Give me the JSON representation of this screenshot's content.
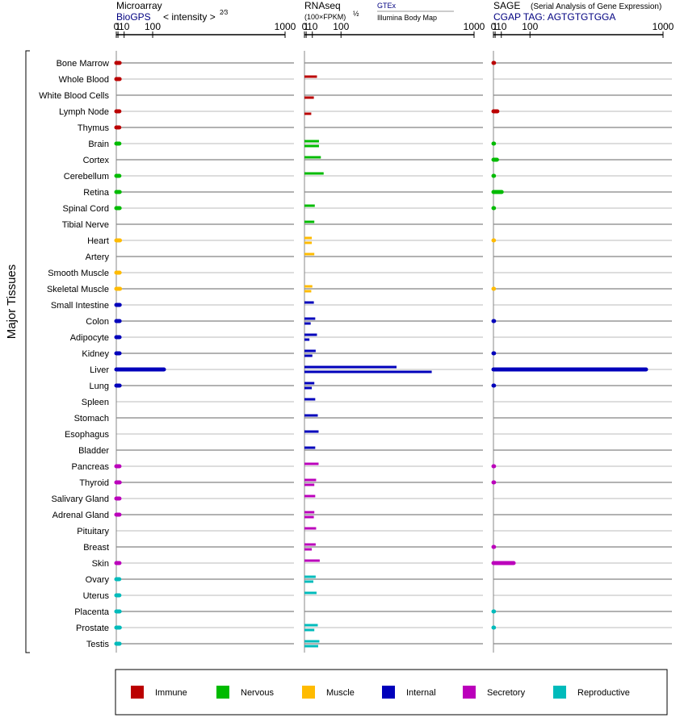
{
  "panels": {
    "microarray": {
      "title": "Microarray",
      "source": "BioGPS",
      "subtitle": "< intensity >",
      "exponent": "2⁄3",
      "ticks": [
        "0",
        "1",
        "10",
        "100",
        "1000"
      ]
    },
    "rnaseq": {
      "title": "RNAseq",
      "unit": "(100×FPKM)",
      "exponent": "½",
      "source1": "GTEx",
      "source2": "Illumina Body Map",
      "ticks": [
        "0",
        "1",
        "10",
        "100",
        "1000"
      ]
    },
    "sage": {
      "title": "SAGE",
      "title_note": "(Serial Analysis of Gene Expression)",
      "source": "CGAP  TAG: AGTGTGTGGA",
      "ticks": [
        "0",
        "1",
        "10",
        "100",
        "1000"
      ]
    }
  },
  "y_axis_label": "Major Tissues",
  "legend": {
    "immune": "Immune",
    "nervous": "Nervous",
    "muscle": "Muscle",
    "internal": "Internal",
    "secretory": "Secretory",
    "reproductive": "Reproductive"
  },
  "colors": {
    "immune": "#bb0000",
    "nervous": "#00bb00",
    "muscle": "#ffbb00",
    "internal": "#0000bb",
    "secretory": "#bb00bb",
    "reproductive": "#00bbbb",
    "grid": "#999999",
    "axis": "#000000",
    "source_link": "#000080"
  },
  "chart_data": {
    "type": "bar",
    "scale": "power 2/3 (0, 1, 10, 100, 1000 ticks)",
    "xlim": [
      0,
      1000
    ],
    "tissues": [
      {
        "name": "Bone Marrow",
        "group": "immune",
        "microarray": 2.8,
        "gtex": null,
        "ibm": null,
        "sage": 0.05
      },
      {
        "name": "Whole Blood",
        "group": "immune",
        "microarray": 2.8,
        "gtex": 20,
        "ibm": null,
        "sage": null
      },
      {
        "name": "White Blood Cells",
        "group": "immune",
        "microarray": null,
        "gtex": null,
        "ibm": 13,
        "sage": null
      },
      {
        "name": "Lymph Node",
        "group": "immune",
        "microarray": 2.5,
        "gtex": null,
        "ibm": 8,
        "sage": 3.0
      },
      {
        "name": "Thymus",
        "group": "immune",
        "microarray": 2.4,
        "gtex": null,
        "ibm": null,
        "sage": null
      },
      {
        "name": "Brain",
        "group": "nervous",
        "microarray": 2.5,
        "gtex": 25,
        "ibm": 25,
        "sage": 0.03
      },
      {
        "name": "Cortex",
        "group": "nervous",
        "microarray": null,
        "gtex": 30,
        "ibm": null,
        "sage": 2.5
      },
      {
        "name": "Cerebellum",
        "group": "nervous",
        "microarray": 2.5,
        "gtex": 38,
        "ibm": null,
        "sage": 0.03
      },
      {
        "name": "Retina",
        "group": "nervous",
        "microarray": 2.9,
        "gtex": null,
        "ibm": null,
        "sage": 10
      },
      {
        "name": "Spinal Cord",
        "group": "nervous",
        "microarray": 2.8,
        "gtex": 15,
        "ibm": null,
        "sage": 0.03
      },
      {
        "name": "Tibial Nerve",
        "group": "nervous",
        "microarray": null,
        "gtex": 14,
        "ibm": null,
        "sage": null
      },
      {
        "name": "Heart",
        "group": "muscle",
        "microarray": 3.2,
        "gtex": 9,
        "ibm": 9,
        "sage": 0.02
      },
      {
        "name": "Artery",
        "group": "muscle",
        "microarray": null,
        "gtex": 14,
        "ibm": null,
        "sage": null
      },
      {
        "name": "Smooth Muscle",
        "group": "muscle",
        "microarray": 2.8,
        "gtex": null,
        "ibm": null,
        "sage": null
      },
      {
        "name": "Skeletal Muscle",
        "group": "muscle",
        "microarray": 3.3,
        "gtex": 10,
        "ibm": 8,
        "sage": 0.02
      },
      {
        "name": "Small Intestine",
        "group": "internal",
        "microarray": 2.9,
        "gtex": 13,
        "ibm": null,
        "sage": null
      },
      {
        "name": "Colon",
        "group": "internal",
        "microarray": 2.8,
        "gtex": 16,
        "ibm": 7,
        "sage": 0.05
      },
      {
        "name": "Adipocyte",
        "group": "internal",
        "microarray": 2.7,
        "gtex": 20,
        "ibm": 5,
        "sage": null
      },
      {
        "name": "Kidney",
        "group": "internal",
        "microarray": 2.7,
        "gtex": 17,
        "ibm": 10,
        "sage": 0.05
      },
      {
        "name": "Liver",
        "group": "internal",
        "microarray": 150,
        "gtex": 400,
        "ibm": 650,
        "sage": 850
      },
      {
        "name": "Lung",
        "group": "internal",
        "microarray": 2.8,
        "gtex": 14,
        "ibm": 9,
        "sage": 0.05
      },
      {
        "name": "Spleen",
        "group": "internal",
        "microarray": null,
        "gtex": 16,
        "ibm": null,
        "sage": null
      },
      {
        "name": "Stomach",
        "group": "internal",
        "microarray": null,
        "gtex": 22,
        "ibm": null,
        "sage": null
      },
      {
        "name": "Esophagus",
        "group": "internal",
        "microarray": null,
        "gtex": 24,
        "ibm": null,
        "sage": null
      },
      {
        "name": "Bladder",
        "group": "internal",
        "microarray": null,
        "gtex": 16,
        "ibm": null,
        "sage": null
      },
      {
        "name": "Pancreas",
        "group": "secretory",
        "microarray": 2.6,
        "gtex": 24,
        "ibm": null,
        "sage": 0.05
      },
      {
        "name": "Thyroid",
        "group": "secretory",
        "microarray": 2.9,
        "gtex": 18,
        "ibm": 14,
        "sage": 0.05
      },
      {
        "name": "Salivary Gland",
        "group": "secretory",
        "microarray": 2.6,
        "gtex": 16,
        "ibm": null,
        "sage": null
      },
      {
        "name": "Adrenal Gland",
        "group": "secretory",
        "microarray": 2.6,
        "gtex": 14,
        "ibm": 13,
        "sage": null
      },
      {
        "name": "Pituitary",
        "group": "secretory",
        "microarray": null,
        "gtex": 18,
        "ibm": null,
        "sage": null
      },
      {
        "name": "Breast",
        "group": "secretory",
        "microarray": null,
        "gtex": 17,
        "ibm": 9,
        "sage": 0.05
      },
      {
        "name": "Skin",
        "group": "secretory",
        "microarray": 2.6,
        "gtex": 27,
        "ibm": null,
        "sage": 40
      },
      {
        "name": "Ovary",
        "group": "reproductive",
        "microarray": 2.4,
        "gtex": 17,
        "ibm": 12,
        "sage": null
      },
      {
        "name": "Uterus",
        "group": "reproductive",
        "microarray": 2.5,
        "gtex": 19,
        "ibm": null,
        "sage": null
      },
      {
        "name": "Placenta",
        "group": "reproductive",
        "microarray": 2.8,
        "gtex": null,
        "ibm": null,
        "sage": 0.03
      },
      {
        "name": "Prostate",
        "group": "reproductive",
        "microarray": 3.0,
        "gtex": 22,
        "ibm": 14,
        "sage": 0.03
      },
      {
        "name": "Testis",
        "group": "reproductive",
        "microarray": 2.7,
        "gtex": 26,
        "ibm": 23,
        "sage": null
      }
    ]
  }
}
